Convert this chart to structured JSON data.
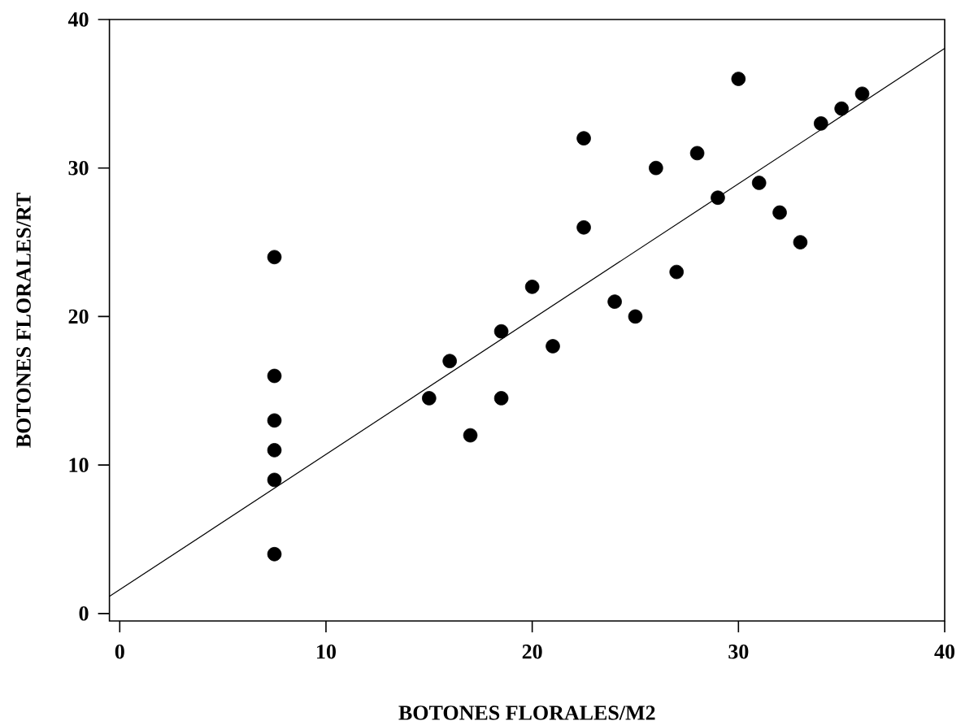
{
  "chart_data": {
    "type": "scatter",
    "xlabel": "BOTONES FLORALES/M2",
    "ylabel": "BOTONES FLORALES/RT",
    "xlim": [
      -0.5,
      40
    ],
    "ylim": [
      -0.5,
      40
    ],
    "xticks": [
      0,
      10,
      20,
      30,
      40
    ],
    "yticks": [
      0,
      10,
      20,
      30,
      40
    ],
    "series": [
      {
        "color": "#000000",
        "marker": "circle",
        "x": [
          7.5,
          7.5,
          7.5,
          7.5,
          7.5,
          7.5,
          15,
          16,
          17,
          18.5,
          18.5,
          20,
          21,
          22.5,
          22.5,
          24,
          25,
          26,
          27,
          28,
          29,
          30,
          31,
          32,
          33,
          34,
          35,
          36
        ],
        "values": [
          24,
          16,
          13,
          11,
          9,
          4,
          14.5,
          17,
          12,
          19,
          14.5,
          22,
          18,
          32,
          26,
          21,
          20,
          30,
          23,
          31,
          28,
          36,
          29,
          27,
          25,
          33,
          34,
          35
        ]
      },
      {
        "type": "line",
        "color": "#000000",
        "marker": "none",
        "line_style": "solid",
        "x": [
          -0.5,
          40
        ],
        "values": [
          1.15,
          38.05
        ]
      }
    ]
  }
}
